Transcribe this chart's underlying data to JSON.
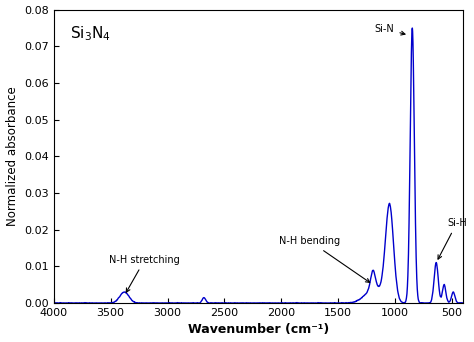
{
  "xlabel": "Wavenumber (cm⁻¹)",
  "ylabel": "Normalized absorbance",
  "xlim": [
    4000,
    400
  ],
  "ylim": [
    0,
    0.08
  ],
  "yticks": [
    0.0,
    0.01,
    0.02,
    0.03,
    0.04,
    0.05,
    0.06,
    0.07,
    0.08
  ],
  "xticks": [
    4000,
    3500,
    3000,
    2500,
    2000,
    1500,
    1000,
    500
  ],
  "line_color": "#0000CC",
  "background_color": "#ffffff"
}
